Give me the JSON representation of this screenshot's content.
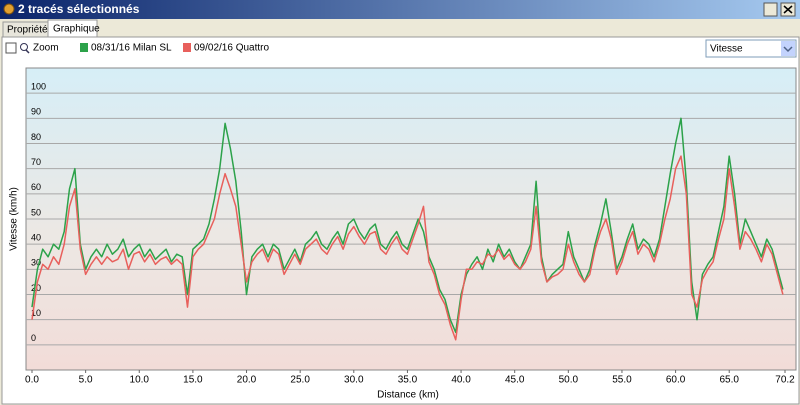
{
  "window": {
    "title": "2 tracés sélectionnés",
    "tabs": [
      "Propriétés",
      "Graphique"
    ],
    "zoom_label": "Zoom",
    "selector": "Vitesse"
  },
  "chart_data": {
    "type": "line",
    "y_label": "Vitesse (km/h)",
    "x_label": "Distance  (km)",
    "xlim": [
      0,
      70.2
    ],
    "ylim": [
      -10,
      110
    ],
    "xticks": [
      {
        "value": 0,
        "label": "0.0"
      },
      {
        "value": 5,
        "label": "5.0"
      },
      {
        "value": 10,
        "label": "10.0"
      },
      {
        "value": 15,
        "label": "15.0"
      },
      {
        "value": 20,
        "label": "20.0"
      },
      {
        "value": 25,
        "label": "25.0"
      },
      {
        "value": 30,
        "label": "30.0"
      },
      {
        "value": 35,
        "label": "35.0"
      },
      {
        "value": 40,
        "label": "40.0"
      },
      {
        "value": 45,
        "label": "45.0"
      },
      {
        "value": 50,
        "label": "50.0"
      },
      {
        "value": 55,
        "label": "55.0"
      },
      {
        "value": 60,
        "label": "60.0"
      },
      {
        "value": 65,
        "label": "65.0"
      },
      70.2
    ],
    "yticks": [
      0,
      10,
      20,
      30,
      40,
      50,
      60,
      70,
      80,
      90,
      100
    ],
    "grid": true,
    "x": [
      0,
      0.5,
      1,
      1.5,
      2,
      2.5,
      3,
      3.5,
      4,
      4.5,
      5,
      5.5,
      6,
      6.5,
      7,
      7.5,
      8,
      8.5,
      9,
      9.5,
      10,
      10.5,
      11,
      11.5,
      12,
      12.5,
      13,
      13.5,
      14,
      14.5,
      15,
      15.5,
      16,
      16.5,
      17,
      17.5,
      18,
      18.5,
      19,
      19.5,
      20,
      20.5,
      21,
      21.5,
      22,
      22.5,
      23,
      23.5,
      24,
      24.5,
      25,
      25.5,
      26,
      26.5,
      27,
      27.5,
      28,
      28.5,
      29,
      29.5,
      30,
      30.5,
      31,
      31.5,
      32,
      32.5,
      33,
      33.5,
      34,
      34.5,
      35,
      35.5,
      36,
      36.5,
      37,
      37.5,
      38,
      38.5,
      39,
      39.5,
      40,
      40.5,
      41,
      41.5,
      42,
      42.5,
      43,
      43.5,
      44,
      44.5,
      45,
      45.5,
      46,
      46.5,
      47,
      47.5,
      48,
      48.5,
      49,
      49.5,
      50,
      50.5,
      51,
      51.5,
      52,
      52.5,
      53,
      53.5,
      54,
      54.5,
      55,
      55.5,
      56,
      56.5,
      57,
      57.5,
      58,
      58.5,
      59,
      59.5,
      60,
      60.5,
      61,
      61.5,
      62,
      62.5,
      63,
      63.5,
      64,
      64.5,
      65,
      65.5,
      66,
      66.5,
      67,
      67.5,
      68,
      68.5,
      69,
      69.5,
      70
    ],
    "series": [
      {
        "name": "08/31/16 Milan SL",
        "color": "#2ca24a",
        "values": [
          15,
          30,
          38,
          35,
          40,
          38,
          45,
          62,
          70,
          40,
          30,
          35,
          38,
          35,
          40,
          36,
          38,
          42,
          35,
          38,
          40,
          35,
          38,
          34,
          36,
          38,
          33,
          36,
          35,
          20,
          38,
          40,
          42,
          48,
          58,
          70,
          88,
          78,
          65,
          45,
          20,
          35,
          38,
          40,
          35,
          40,
          38,
          30,
          34,
          38,
          33,
          40,
          42,
          45,
          40,
          38,
          42,
          45,
          40,
          48,
          50,
          45,
          42,
          46,
          48,
          40,
          38,
          42,
          45,
          40,
          38,
          44,
          50,
          45,
          35,
          30,
          22,
          18,
          10,
          5,
          20,
          28,
          32,
          35,
          30,
          38,
          33,
          40,
          35,
          38,
          33,
          30,
          35,
          40,
          65,
          35,
          25,
          28,
          30,
          32,
          45,
          35,
          30,
          25,
          30,
          40,
          48,
          58,
          45,
          30,
          35,
          42,
          48,
          38,
          42,
          40,
          35,
          42,
          55,
          68,
          80,
          90,
          65,
          25,
          10,
          28,
          32,
          35,
          45,
          55,
          75,
          60,
          40,
          50,
          45,
          40,
          35,
          42,
          38,
          30,
          22
        ]
      },
      {
        "name": "09/02/16 Quattro",
        "color": "#e8605c",
        "values": [
          10,
          25,
          32,
          30,
          35,
          32,
          40,
          55,
          62,
          38,
          28,
          32,
          35,
          32,
          35,
          33,
          34,
          38,
          30,
          36,
          37,
          33,
          36,
          32,
          34,
          35,
          32,
          34,
          32,
          15,
          35,
          38,
          40,
          45,
          50,
          60,
          68,
          62,
          55,
          40,
          25,
          33,
          36,
          38,
          33,
          38,
          36,
          28,
          32,
          36,
          32,
          38,
          40,
          42,
          38,
          36,
          40,
          43,
          38,
          44,
          47,
          43,
          40,
          44,
          45,
          38,
          36,
          40,
          43,
          38,
          36,
          42,
          48,
          55,
          33,
          28,
          20,
          16,
          8,
          2,
          18,
          30,
          30,
          33,
          32,
          36,
          35,
          38,
          34,
          36,
          32,
          30,
          33,
          38,
          55,
          33,
          25,
          27,
          28,
          30,
          40,
          33,
          28,
          25,
          28,
          38,
          45,
          50,
          42,
          28,
          33,
          40,
          45,
          36,
          40,
          38,
          33,
          40,
          50,
          58,
          70,
          75,
          60,
          20,
          15,
          26,
          30,
          33,
          42,
          50,
          70,
          55,
          38,
          45,
          42,
          38,
          33,
          40,
          36,
          28,
          20
        ]
      }
    ]
  }
}
